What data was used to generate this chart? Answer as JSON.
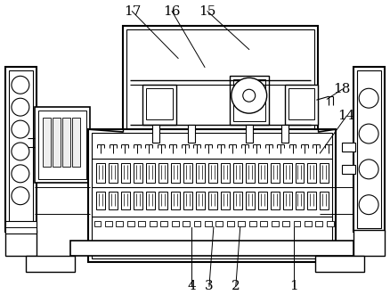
{
  "bg_color": "#ffffff",
  "line_color": "#000000",
  "figsize": [
    4.38,
    3.31
  ],
  "dpi": 100
}
